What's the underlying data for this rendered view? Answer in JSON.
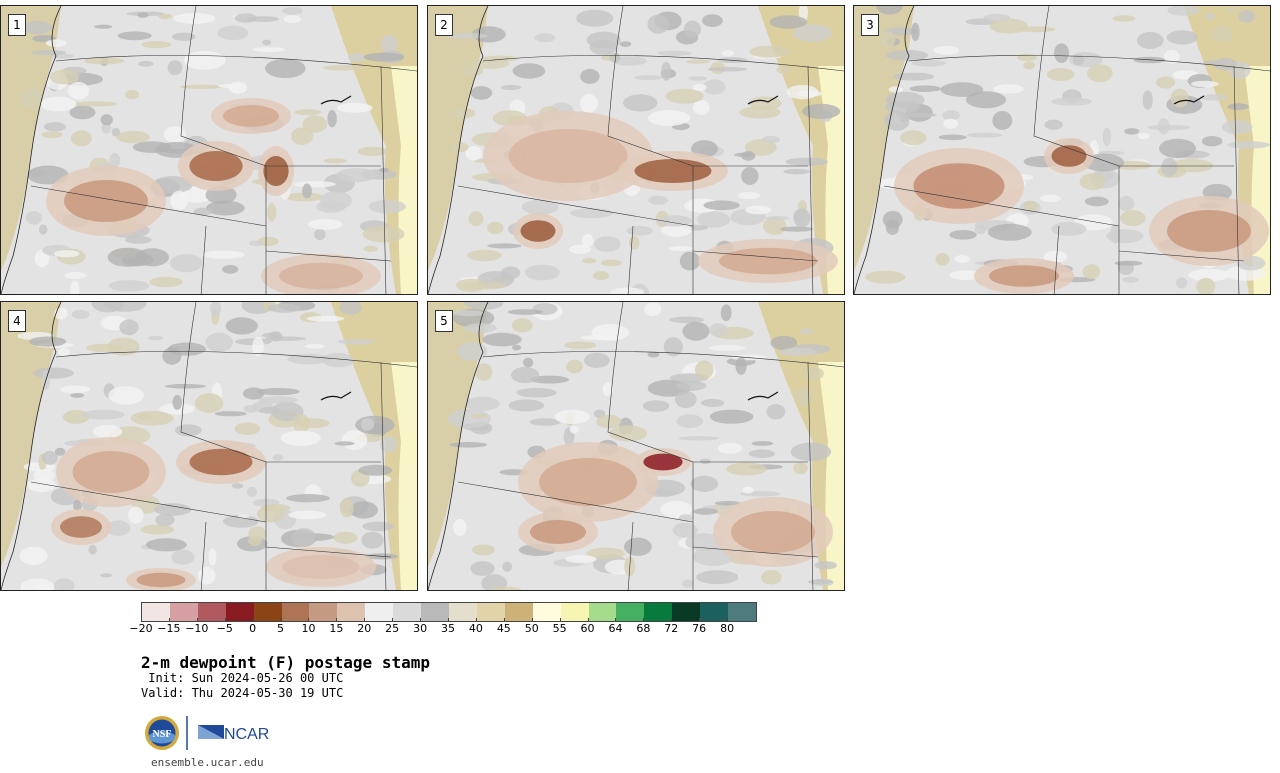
{
  "panels": [
    {
      "label": "1"
    },
    {
      "label": "2"
    },
    {
      "label": "3"
    },
    {
      "label": "4"
    },
    {
      "label": "5"
    }
  ],
  "colorbar": {
    "colors": [
      "#f2e6e4",
      "#d6a0a2",
      "#b05a60",
      "#8a1a22",
      "#8a4416",
      "#ae7455",
      "#c49b82",
      "#ddc2b0",
      "#efefef",
      "#dadada",
      "#b9b9b9",
      "#e3dfcc",
      "#e2d3a8",
      "#ccb276",
      "#fffbdc",
      "#f7f5b2",
      "#a5dc8c",
      "#46b062",
      "#087a3c",
      "#083a26",
      "#1c6060",
      "#4e7b7e"
    ],
    "tick_labels": [
      "−20",
      "−15",
      "−10",
      "−5",
      "0",
      "5",
      "10",
      "15",
      "20",
      "25",
      "30",
      "35",
      "40",
      "45",
      "50",
      "55",
      "60",
      "64",
      "68",
      "72",
      "76",
      "80"
    ],
    "legend_note": "colors map 2-m dewpoint in °F"
  },
  "title": "2-m dewpoint (F) postage stamp",
  "init": " Init: Sun 2024-05-26 00 UTC",
  "valid": "Valid: Thu 2024-05-30 19 UTC",
  "logos": {
    "nsf": "NSF",
    "ncar": "NCAR"
  },
  "footer_url": "ensemble.ucar.edu"
}
